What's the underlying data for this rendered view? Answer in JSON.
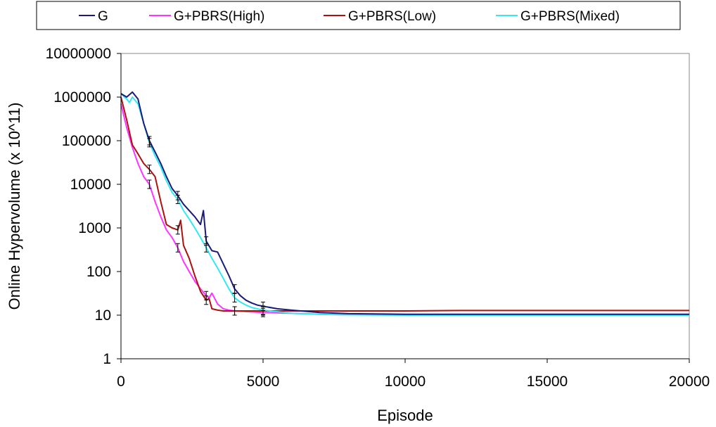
{
  "chart_data": {
    "type": "line",
    "title": "",
    "xlabel": "Episode",
    "ylabel": "Online Hypervolume (x 10^11)",
    "xlim": [
      0,
      20000
    ],
    "ylim": [
      1,
      10000000
    ],
    "y_scale": "log",
    "x_ticks": [
      "0",
      "5000",
      "10000",
      "15000",
      "20000"
    ],
    "x_tick_values": [
      0,
      5000,
      10000,
      15000,
      20000
    ],
    "y_ticks": [
      "1",
      "10",
      "100",
      "1000",
      "10000",
      "100000",
      "1000000",
      "10000000"
    ],
    "y_tick_values": [
      1,
      10,
      100,
      1000,
      10000,
      100000,
      1000000,
      10000000
    ],
    "grid": false,
    "legend_position": "top",
    "series": [
      {
        "name": "G",
        "color": "#1a1a7a",
        "x": [
          0,
          200,
          400,
          600,
          800,
          1000,
          1200,
          1400,
          1600,
          1800,
          2000,
          2200,
          2400,
          2600,
          2800,
          2900,
          3000,
          3200,
          3400,
          3600,
          3800,
          4000,
          4200,
          4400,
          4600,
          4800,
          5000,
          5500,
          6000,
          7000,
          8000,
          10000,
          12000,
          14000,
          16000,
          18000,
          20000
        ],
        "y": [
          1200000,
          1000000,
          1300000,
          900000,
          250000,
          100000,
          55000,
          30000,
          15000,
          8000,
          5500,
          3500,
          2500,
          1800,
          1200,
          2500,
          500,
          300,
          280,
          150,
          80,
          40,
          28,
          22,
          19,
          17,
          16,
          14,
          13,
          11.5,
          10.8,
          10.5,
          10.5,
          10.5,
          10.5,
          10.5,
          10.5
        ]
      },
      {
        "name": "G+PBRS(High)",
        "color": "#ff33ff",
        "x": [
          0,
          200,
          400,
          600,
          800,
          1000,
          1200,
          1400,
          1600,
          1800,
          2000,
          2200,
          2400,
          2600,
          2800,
          3000,
          3100,
          3200,
          3400,
          3600,
          3800,
          4000,
          4500,
          5000,
          6000,
          7000,
          8000
        ],
        "y": [
          700000,
          200000,
          70000,
          30000,
          15000,
          10000,
          4000,
          1800,
          900,
          600,
          350,
          170,
          100,
          60,
          40,
          28,
          25,
          32,
          18,
          14,
          13,
          12.5,
          12,
          11.5,
          11,
          10.5,
          10.2
        ]
      },
      {
        "name": "G+PBRS(Low)",
        "color": "#aa1111",
        "x": [
          0,
          200,
          400,
          600,
          800,
          1000,
          1200,
          1400,
          1600,
          1800,
          2000,
          2100,
          2200,
          2400,
          2600,
          2800,
          3000,
          3100,
          3200,
          3400,
          3600,
          4000,
          5000,
          6000,
          8000,
          10000,
          12000,
          14000,
          16000,
          18000,
          20000
        ],
        "y": [
          1000000,
          300000,
          80000,
          50000,
          30000,
          22000,
          15000,
          4000,
          1200,
          1000,
          900,
          1500,
          400,
          200,
          80,
          35,
          22,
          24,
          14,
          13,
          12.5,
          12.5,
          12.5,
          12.5,
          12.5,
          12.5,
          12.8,
          12.8,
          12.8,
          12.8,
          12.8
        ]
      },
      {
        "name": "G+PBRS(Mixed)",
        "color": "#33e8f0",
        "x": [
          0,
          200,
          300,
          400,
          600,
          800,
          1000,
          1200,
          1400,
          1600,
          1800,
          2000,
          2200,
          2400,
          2600,
          2800,
          3000,
          3200,
          3400,
          3600,
          3800,
          4000,
          4200,
          4400,
          4600,
          5000,
          5500,
          6000,
          7000,
          8000,
          10000,
          15000,
          20000
        ],
        "y": [
          1200000,
          900000,
          750000,
          1000000,
          700000,
          250000,
          90000,
          45000,
          25000,
          12000,
          6500,
          4500,
          2500,
          1600,
          1000,
          600,
          350,
          200,
          120,
          70,
          40,
          25,
          20,
          17,
          15,
          13,
          12,
          11,
          10.5,
          10.2,
          10,
          10,
          10
        ]
      }
    ]
  }
}
